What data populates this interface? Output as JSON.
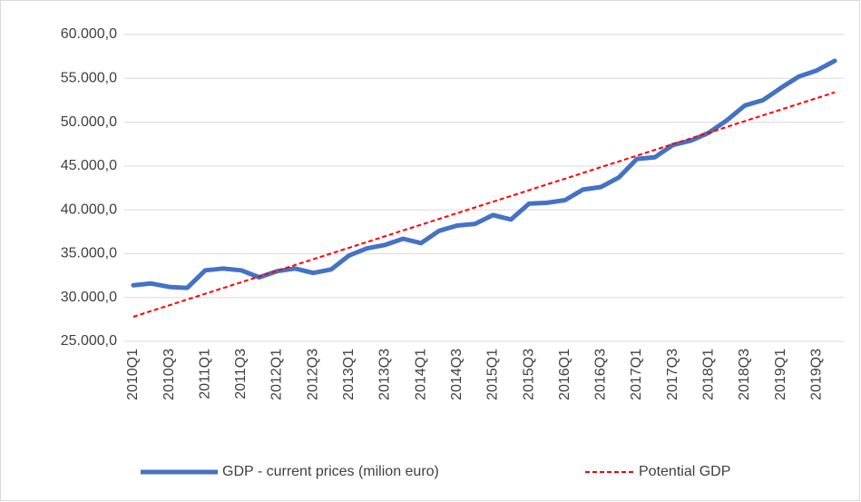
{
  "chart_data": {
    "type": "line",
    "categories": [
      "2010Q1",
      null,
      "2010Q3",
      null,
      "2011Q1",
      null,
      "2011Q3",
      null,
      "2012Q1",
      null,
      "2012Q3",
      null,
      "2013Q1",
      null,
      "2013Q3",
      null,
      "2014Q1",
      null,
      "2014Q3",
      null,
      "2015Q1",
      null,
      "2015Q3",
      null,
      "2016Q1",
      null,
      "2016Q3",
      null,
      "2017Q1",
      null,
      "2017Q3",
      null,
      "2018Q1",
      null,
      "2018Q3",
      null,
      "2019Q1",
      null,
      "2019Q3",
      null
    ],
    "series": [
      {
        "name": "GDP - current prices (milion euro)",
        "color": "#4472c4",
        "style": "solid",
        "values": [
          31400,
          31600,
          31200,
          31100,
          33100,
          33300,
          33100,
          32300,
          33000,
          33300,
          32800,
          33200,
          34800,
          35600,
          36000,
          36700,
          36200,
          37600,
          38200,
          38400,
          39400,
          38900,
          40700,
          40800,
          41100,
          42300,
          42600,
          43700,
          45800,
          46000,
          47400,
          47900,
          48800,
          50200,
          51900,
          52500,
          53900,
          55200,
          55900,
          57000
        ]
      },
      {
        "name": "Potential GDP",
        "color": "#ff0000",
        "style": "dashed",
        "values": [
          27800,
          28460,
          29110,
          29770,
          30430,
          31080,
          31740,
          32390,
          33050,
          33710,
          34360,
          35020,
          35680,
          36330,
          36990,
          37650,
          38300,
          38960,
          39620,
          40270,
          40930,
          41580,
          42240,
          42900,
          43550,
          44210,
          44870,
          45520,
          46180,
          46840,
          47490,
          48150,
          48800,
          49460,
          50120,
          50770,
          51430,
          52090,
          52740,
          53400
        ]
      }
    ],
    "ylim": [
      25000,
      60000
    ],
    "yticks": [
      {
        "value": 25000,
        "label": "25.000,0"
      },
      {
        "value": 30000,
        "label": "30.000,0"
      },
      {
        "value": 35000,
        "label": "35.000,0"
      },
      {
        "value": 40000,
        "label": "40.000,0"
      },
      {
        "value": 45000,
        "label": "45.000,0"
      },
      {
        "value": 50000,
        "label": "50.000,0"
      },
      {
        "value": 55000,
        "label": "55.000,0"
      },
      {
        "value": 60000,
        "label": "60.000,0"
      }
    ],
    "grid": true,
    "legend": "bottom"
  }
}
